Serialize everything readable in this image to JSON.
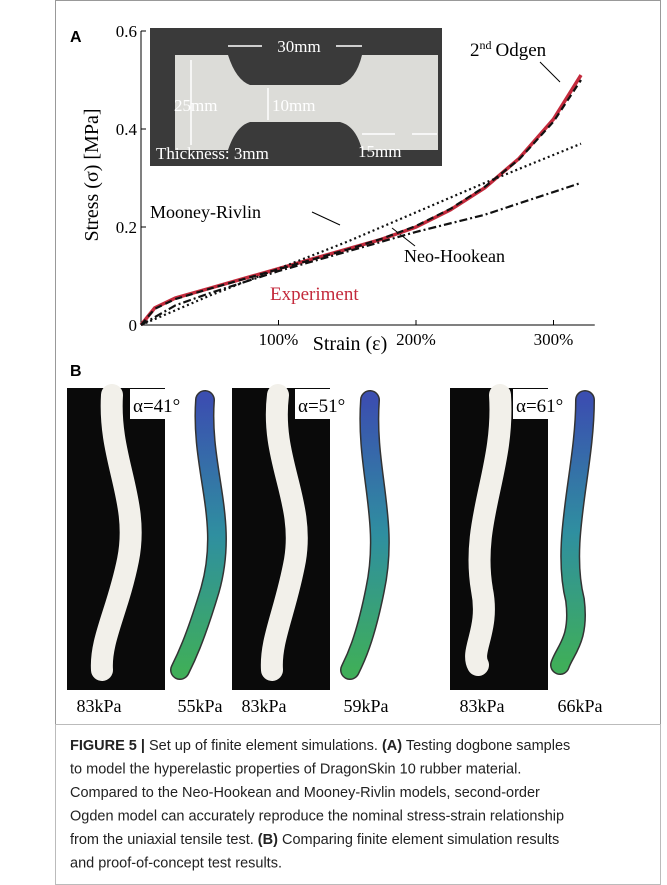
{
  "chart_data": {
    "type": "line",
    "panel_label": "A",
    "x_label": "Strain (ε)",
    "y_label": "Stress (σ) [MPa]",
    "xlim": [
      0,
      3.3
    ],
    "ylim": [
      0,
      0.6
    ],
    "xticks": [
      {
        "value": 1,
        "label": "100%"
      },
      {
        "value": 2,
        "label": "200%"
      },
      {
        "value": 3,
        "label": "300%"
      }
    ],
    "yticks": [
      0,
      0.2,
      0.4,
      0.6
    ],
    "series": [
      {
        "name": "Experiment",
        "color": "#c42a3c",
        "style": "solid",
        "x": [
          0,
          0.1,
          0.25,
          0.5,
          0.75,
          1,
          1.25,
          1.5,
          1.75,
          2,
          2.25,
          2.5,
          2.75,
          3,
          3.2
        ],
        "values": [
          0,
          0.035,
          0.055,
          0.075,
          0.095,
          0.115,
          0.135,
          0.155,
          0.175,
          0.2,
          0.235,
          0.28,
          0.34,
          0.42,
          0.51
        ]
      },
      {
        "name": "Neo-Hookean",
        "color": "#111111",
        "style": "dashdot",
        "x": [
          0,
          0.25,
          0.5,
          1,
          1.5,
          2,
          2.5,
          3.2
        ],
        "values": [
          0,
          0.04,
          0.065,
          0.11,
          0.15,
          0.19,
          0.225,
          0.29
        ]
      },
      {
        "name": "Mooney-Rivlin",
        "color": "#111111",
        "style": "dotted",
        "x": [
          0,
          0.5,
          1,
          1.5,
          2,
          2.5,
          3.2
        ],
        "values": [
          0,
          0.06,
          0.115,
          0.17,
          0.23,
          0.29,
          0.37
        ]
      },
      {
        "label_parts": [
          "2",
          "nd",
          "Odgen"
        ],
        "color": "#111111",
        "style": "dashed",
        "x": [
          0,
          0.1,
          0.25,
          0.5,
          0.75,
          1,
          1.25,
          1.5,
          1.75,
          2,
          2.25,
          2.5,
          2.75,
          3,
          3.2
        ],
        "values": [
          0,
          0.033,
          0.053,
          0.074,
          0.094,
          0.114,
          0.134,
          0.154,
          0.176,
          0.202,
          0.237,
          0.282,
          0.338,
          0.415,
          0.5
        ]
      }
    ],
    "inset": {
      "width": "30mm",
      "height": "25mm",
      "neck": "10mm",
      "end": "15mm",
      "thickness": "Thickness: 3mm"
    }
  },
  "panel_b": {
    "label": "B",
    "panels": [
      {
        "angle": "α=41°",
        "experiment_pressure": "83kPa",
        "simulation_pressure": "55kPa"
      },
      {
        "angle": "α=51°",
        "experiment_pressure": "83kPa",
        "simulation_pressure": "59kPa"
      },
      {
        "angle": "α=61°",
        "experiment_pressure": "83kPa",
        "simulation_pressure": "66kPa"
      }
    ]
  },
  "caption": {
    "lines": [
      [
        {
          "text": "FIGURE 5 |",
          "bold": true
        },
        {
          "text": " Set up of finite element simulations. "
        },
        {
          "text": "(A)",
          "bold": true
        },
        {
          "text": " Testing dogbone samples"
        }
      ],
      [
        {
          "text": "to model the hyperelastic properties of DragonSkin 10 rubber material."
        }
      ],
      [
        {
          "text": "Compared to the Neo-Hookean and Mooney-Rivlin models, second-order"
        }
      ],
      [
        {
          "text": "Ogden model can accurately reproduce the nominal stress-strain relationship"
        }
      ],
      [
        {
          "text": "from the uniaxial tensile test. "
        },
        {
          "text": "(B)",
          "bold": true
        },
        {
          "text": " Comparing finite element simulation results"
        }
      ],
      [
        {
          "text": "and proof-of-concept test results."
        }
      ]
    ]
  }
}
